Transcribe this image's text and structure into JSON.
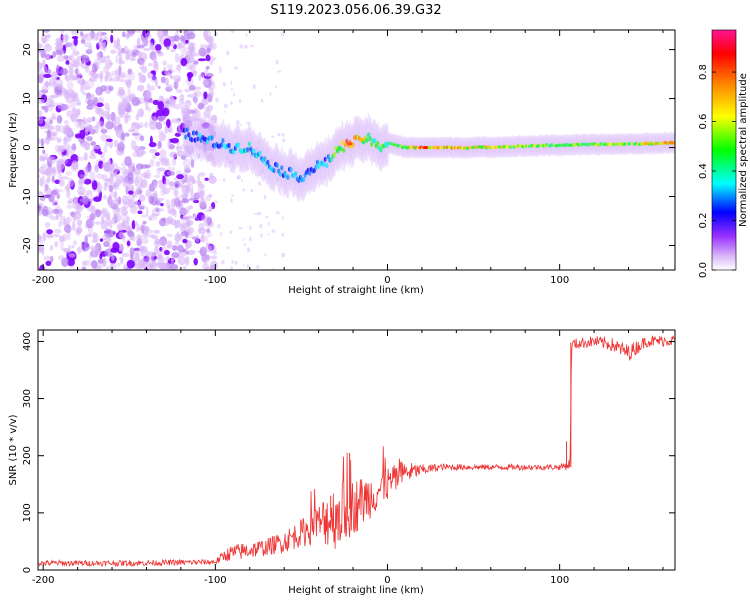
{
  "page_title": "S119.2023.056.06.39.G32",
  "chart_data": [
    {
      "type": "heatmap",
      "title": "S119.2023.056.06.39.G32",
      "xlabel": "Height of straight line (km)",
      "ylabel": "Frequency (Hz)",
      "xlim": [
        -203,
        167
      ],
      "ylim": [
        -25,
        24
      ],
      "xticks": [
        -200,
        -100,
        0,
        100
      ],
      "yticks": [
        -20,
        -10,
        0,
        10,
        20
      ],
      "colorbar": {
        "label": "Normalized spectral amplitude",
        "range": [
          0.0,
          0.97
        ],
        "ticks": [
          0.0,
          0.2,
          0.4,
          0.6,
          0.8
        ],
        "tick_labels": [
          "0.0",
          "0.2",
          "0.4",
          "0.6",
          "0.8"
        ],
        "colormap": [
          "#ffffff",
          "#d8b4f8",
          "#7f00ff",
          "#0000ff",
          "#00ffff",
          "#00ff00",
          "#ffff00",
          "#ff8000",
          "#ff0000",
          "#ff1493"
        ]
      },
      "noise_region_x": [
        -203,
        -100
      ],
      "ridge": {
        "x": [
          -118,
          -110,
          -100,
          -90,
          -80,
          -70,
          -60,
          -50,
          -42,
          -35,
          -28,
          -20,
          -12,
          -5,
          0,
          10,
          20,
          50,
          100,
          150,
          167
        ],
        "freq": [
          3,
          2,
          1,
          0,
          0,
          -3,
          -5,
          -6,
          -4,
          -3,
          0,
          1,
          2,
          0,
          1,
          0,
          0,
          0,
          0.5,
          0.8,
          1
        ],
        "amplitude": [
          0.25,
          0.3,
          0.3,
          0.3,
          0.35,
          0.3,
          0.3,
          0.3,
          0.3,
          0.3,
          0.6,
          0.75,
          0.5,
          0.45,
          0.45,
          0.5,
          0.75,
          0.6,
          0.5,
          0.55,
          0.75
        ]
      }
    },
    {
      "type": "line",
      "title": "",
      "xlabel": "Height of straight line (km)",
      "ylabel": "SNR (10 * v/v)",
      "xlim": [
        -203,
        167
      ],
      "ylim": [
        0,
        420
      ],
      "xticks": [
        -200,
        -100,
        0,
        100
      ],
      "yticks": [
        0,
        100,
        200,
        300,
        400
      ],
      "color": "#ee3333",
      "series": [
        {
          "name": "SNR",
          "x": [
            -203,
            -150,
            -100,
            -95,
            -90,
            -80,
            -70,
            -60,
            -50,
            -40,
            -35,
            -30,
            -20,
            -10,
            0,
            10,
            20,
            30,
            50,
            80,
            100,
            106,
            107,
            120,
            130,
            140,
            150,
            167
          ],
          "y": [
            12,
            12,
            14,
            25,
            30,
            35,
            40,
            50,
            65,
            80,
            90,
            95,
            110,
            130,
            150,
            170,
            175,
            180,
            180,
            180,
            180,
            185,
            395,
            400,
            395,
            380,
            400,
            402
          ],
          "noise": [
            5,
            5,
            5,
            10,
            15,
            15,
            15,
            20,
            25,
            35,
            50,
            60,
            50,
            40,
            30,
            20,
            10,
            6,
            5,
            5,
            5,
            10,
            10,
            10,
            12,
            15,
            10,
            10
          ]
        }
      ],
      "spikes": [
        {
          "x": -22,
          "y": 205
        },
        {
          "x": -33,
          "y": 130
        },
        {
          "x": 104,
          "y": 225
        }
      ]
    }
  ]
}
